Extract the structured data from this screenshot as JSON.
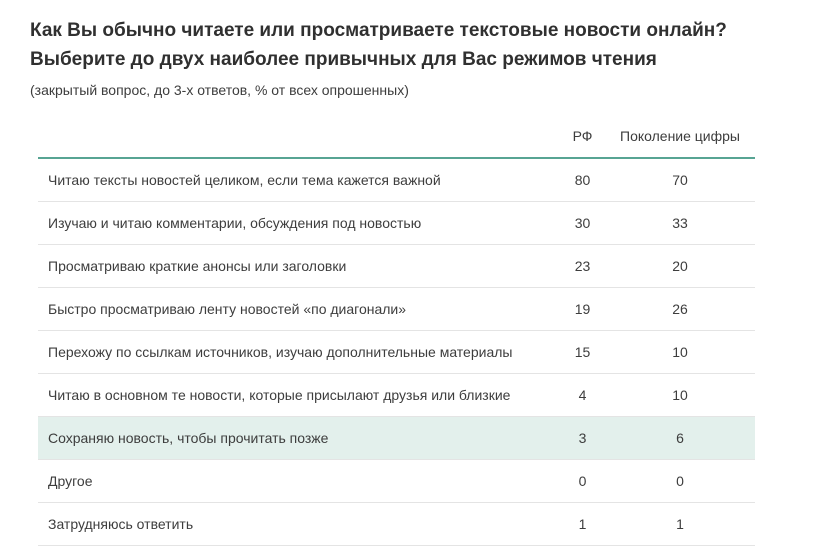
{
  "header": {
    "title_line1": "Как Вы обычно читаете или просматриваете текстовые новости онлайн?",
    "title_line2": "Выберите до двух наиболее привычных для Вас режимов чтения",
    "subtitle": "(закрытый вопрос, до 3-х ответов, % от всех опрошенных)"
  },
  "table": {
    "col_rf": "РФ",
    "col_gen": "Поколение цифры",
    "rows": [
      {
        "label": "Читаю тексты новостей целиком, если тема кажется важной",
        "rf": "80",
        "gen": "70"
      },
      {
        "label": "Изучаю и читаю комментарии, обсуждения под новостью",
        "rf": "30",
        "gen": "33"
      },
      {
        "label": "Просматриваю краткие анонсы или заголовки",
        "rf": "23",
        "gen": "20"
      },
      {
        "label": "Быстро просматриваю ленту новостей «по диагонали»",
        "rf": "19",
        "gen": "26"
      },
      {
        "label": "Перехожу по ссылкам источников, изучаю дополнительные материалы",
        "rf": "15",
        "gen": "10"
      },
      {
        "label": "Читаю в основном те новости, которые присылают друзья или близкие",
        "rf": "4",
        "gen": "10"
      },
      {
        "label": "Сохраняю новость, чтобы прочитать позже",
        "rf": "3",
        "gen": "6",
        "highlight": true
      },
      {
        "label": "Другое",
        "rf": "0",
        "gen": "0"
      },
      {
        "label": "Затрудняюсь ответить",
        "rf": "1",
        "gen": "1"
      }
    ]
  },
  "colors": {
    "accent_teal": "#57a493",
    "highlight_row_bg": "#e3f0ec",
    "row_border": "#e4e4e4",
    "title_text": "#303030",
    "body_text": "#3d3d3d"
  },
  "chart_data": {
    "type": "table",
    "title": "Как Вы обычно читаете или просматриваете текстовые новости онлайн? Выберите до двух наиболее привычных для Вас режимов чтения",
    "subtitle": "(закрытый вопрос, до 3-х ответов, % от всех опрошенных)",
    "columns": [
      "РФ",
      "Поколение цифры"
    ],
    "categories": [
      "Читаю тексты новостей целиком, если тема кажется важной",
      "Изучаю и читаю комментарии, обсуждения под новостью",
      "Просматриваю краткие анонсы или заголовки",
      "Быстро просматриваю ленту новостей «по диагонали»",
      "Перехожу по ссылкам источников, изучаю дополнительные материалы",
      "Читаю в основном те новости, которые присылают друзья или близкие",
      "Сохраняю новость, чтобы прочитать позже",
      "Другое",
      "Затрудняюсь ответить"
    ],
    "series": [
      {
        "name": "РФ",
        "values": [
          80,
          30,
          23,
          19,
          15,
          4,
          3,
          0,
          1
        ]
      },
      {
        "name": "Поколение цифры",
        "values": [
          70,
          33,
          20,
          26,
          10,
          10,
          6,
          0,
          1
        ]
      }
    ],
    "highlighted_row": "Сохраняю новость, чтобы прочитать позже",
    "legend_position": "none",
    "grid": "horizontal-row-separators"
  }
}
